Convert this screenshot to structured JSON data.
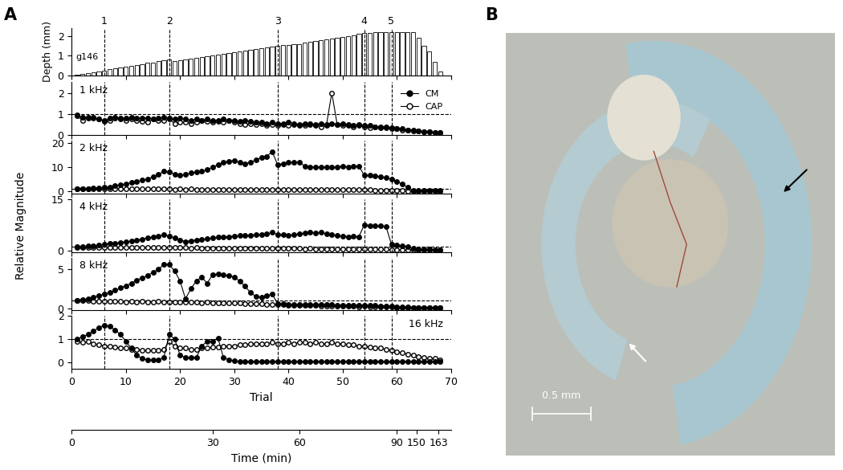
{
  "panel_labels": [
    "A",
    "B"
  ],
  "trial_axis": {
    "label": "Trial",
    "xlim": [
      0,
      70
    ],
    "xticks": [
      0,
      10,
      20,
      30,
      40,
      50,
      60,
      70
    ],
    "x": [
      1,
      2,
      3,
      4,
      5,
      6,
      7,
      8,
      9,
      10,
      11,
      12,
      13,
      14,
      15,
      16,
      17,
      18,
      19,
      20,
      21,
      22,
      23,
      24,
      25,
      26,
      27,
      28,
      29,
      30,
      31,
      32,
      33,
      34,
      35,
      36,
      37,
      38,
      39,
      40,
      41,
      42,
      43,
      44,
      45,
      46,
      47,
      48,
      49,
      50,
      51,
      52,
      53,
      54,
      55,
      56,
      57,
      58,
      59,
      60,
      61,
      62,
      63,
      64,
      65,
      66,
      67,
      68
    ]
  },
  "time_axis": {
    "label": "Time (min)",
    "xlim": [
      0,
      70
    ],
    "xticks": [
      {
        "value": 0,
        "label": "0"
      },
      {
        "value": 26,
        "label": "30"
      },
      {
        "value": 42,
        "label": "60"
      },
      {
        "value": 60,
        "label": "90"
      },
      {
        "value": 63.6,
        "label": "150"
      },
      {
        "value": 67.7,
        "label": "163"
      }
    ]
  },
  "events": {
    "x": [
      6,
      18,
      38,
      54,
      59
    ],
    "labels": [
      "1",
      "2",
      "3",
      "4",
      "5"
    ]
  },
  "y_label": "Relative Magnitude",
  "chart_data": [
    {
      "type": "bar",
      "y_label": "Depth (mm)",
      "annotation": "g146",
      "color": "#ffffff",
      "tick_labels": "y",
      "ylim": [
        0,
        2.4
      ],
      "yticks": [
        0,
        1,
        2
      ],
      "values": [
        0.02,
        0.07,
        0.11,
        0.16,
        0.2,
        0.25,
        0.3,
        0.34,
        0.39,
        0.43,
        0.48,
        0.52,
        0.57,
        0.62,
        0.66,
        0.71,
        0.75,
        0.8,
        0.72,
        0.76,
        0.8,
        0.84,
        0.88,
        0.92,
        0.96,
        1.0,
        1.04,
        1.08,
        1.13,
        1.17,
        1.21,
        1.25,
        1.29,
        1.33,
        1.37,
        1.41,
        1.45,
        1.5,
        1.55,
        1.56,
        1.57,
        1.6,
        1.65,
        1.7,
        1.74,
        1.78,
        1.82,
        1.86,
        1.9,
        1.95,
        2.0,
        2.05,
        2.1,
        2.15,
        2.17,
        2.18,
        2.2,
        2.2,
        2.2,
        2.2,
        2.2,
        2.2,
        2.2,
        1.9,
        1.5,
        1.2,
        0.7,
        0.2
      ]
    },
    {
      "type": "line",
      "title": "1 kHz",
      "legend": "upper right",
      "tick_labels": "y",
      "reference": 1,
      "ylim": [
        0,
        2.5
      ],
      "yticks": [
        0,
        1,
        2
      ],
      "series": [
        {
          "name": "CM",
          "color": "#000000",
          "marker": "filled_circle",
          "values": [
            0.95,
            0.85,
            0.8,
            0.85,
            0.75,
            0.7,
            0.8,
            0.85,
            0.8,
            0.8,
            0.85,
            0.8,
            0.8,
            0.8,
            0.75,
            0.8,
            0.85,
            0.8,
            0.75,
            0.8,
            0.75,
            0.7,
            0.75,
            0.7,
            0.75,
            0.7,
            0.7,
            0.75,
            0.7,
            0.7,
            0.65,
            0.7,
            0.65,
            0.6,
            0.6,
            0.55,
            0.6,
            0.55,
            0.55,
            0.6,
            0.55,
            0.5,
            0.55,
            0.55,
            0.5,
            0.55,
            0.5,
            0.55,
            0.5,
            0.55,
            0.5,
            0.45,
            0.5,
            0.45,
            0.45,
            0.4,
            0.4,
            0.4,
            0.35,
            0.3,
            0.3,
            0.25,
            0.25,
            0.2,
            0.15,
            0.15,
            0.1,
            0.1
          ]
        },
        {
          "name": "CAP",
          "color": "#000000",
          "marker": "open_circle",
          "values": [
            0.9,
            0.7,
            0.85,
            0.8,
            0.75,
            0.65,
            0.7,
            0.8,
            0.75,
            0.7,
            0.75,
            0.7,
            0.65,
            0.6,
            0.75,
            0.7,
            0.7,
            0.75,
            0.55,
            0.6,
            0.6,
            0.55,
            0.6,
            0.7,
            0.65,
            0.6,
            0.65,
            0.6,
            0.7,
            0.6,
            0.55,
            0.5,
            0.55,
            0.5,
            0.55,
            0.45,
            0.5,
            0.45,
            0.5,
            0.45,
            0.5,
            0.45,
            0.45,
            0.5,
            0.45,
            0.4,
            0.45,
            2.0,
            0.5,
            0.45,
            0.45,
            0.4,
            0.45,
            0.4,
            0.35,
            0.4,
            0.35,
            0.35,
            0.3,
            0.3,
            0.25,
            0.25,
            0.2,
            0.2,
            0.15,
            0.15,
            0.1,
            0.1
          ]
        }
      ]
    },
    {
      "type": "line",
      "title": "2 kHz",
      "tick_labels": "y",
      "reference": 1,
      "ylim": [
        -1,
        21
      ],
      "yticks": [
        0,
        10,
        20
      ],
      "series": [
        {
          "name": "CM",
          "color": "#000000",
          "marker": "filled_circle",
          "values": [
            1.0,
            1.0,
            1.0,
            1.2,
            1.3,
            1.5,
            1.8,
            2.2,
            2.6,
            3.0,
            3.5,
            4.0,
            4.5,
            5.0,
            6.0,
            7.0,
            8.2,
            8.0,
            7.0,
            6.5,
            7.0,
            7.5,
            8.0,
            8.2,
            9.0,
            10.0,
            11.0,
            12.0,
            12.5,
            12.8,
            12.0,
            11.5,
            12.0,
            13.0,
            14.0,
            14.5,
            16.5,
            11.0,
            11.5,
            12.0,
            12.0,
            12.0,
            10.5,
            10.0,
            10.0,
            10.0,
            10.0,
            10.0,
            10.0,
            10.5,
            10.0,
            10.5,
            10.5,
            6.5,
            6.5,
            6.3,
            6.0,
            5.5,
            5.0,
            4.0,
            3.0,
            1.5,
            0.3,
            0.2,
            0.2,
            0.2,
            0.2,
            0.2
          ]
        },
        {
          "name": "CAP",
          "color": "#000000",
          "marker": "open_circle",
          "values": [
            1.0,
            1.0,
            0.95,
            1.0,
            0.95,
            0.9,
            0.95,
            0.9,
            0.9,
            0.95,
            0.9,
            0.9,
            0.85,
            0.9,
            0.85,
            0.9,
            0.85,
            0.85,
            0.8,
            0.85,
            0.8,
            0.85,
            0.8,
            0.8,
            0.8,
            0.75,
            0.8,
            0.75,
            0.75,
            0.8,
            0.75,
            0.75,
            0.7,
            0.75,
            0.7,
            0.7,
            0.7,
            0.65,
            0.7,
            0.65,
            0.65,
            0.7,
            0.65,
            0.65,
            0.6,
            0.65,
            0.6,
            0.6,
            0.6,
            0.6,
            0.55,
            0.55,
            0.5,
            0.5,
            0.5,
            0.45,
            0.45,
            0.4,
            0.35,
            0.3,
            0.2,
            0.1,
            0.05,
            0.05,
            0.05,
            0.05,
            0.05,
            0.05
          ]
        }
      ]
    },
    {
      "type": "line",
      "title": "4 kHz",
      "tick_labels": "y",
      "reference": 1,
      "ylim": [
        -0.5,
        15
      ],
      "yticks": [
        0,
        15
      ],
      "series": [
        {
          "name": "CM",
          "color": "#000000",
          "marker": "filled_circle",
          "values": [
            1.0,
            1.1,
            1.2,
            1.3,
            1.5,
            1.7,
            1.9,
            2.1,
            2.3,
            2.5,
            2.7,
            3.0,
            3.3,
            3.6,
            3.9,
            4.2,
            4.5,
            4.2,
            3.6,
            3.0,
            2.6,
            2.8,
            3.0,
            3.2,
            3.4,
            3.6,
            3.8,
            3.9,
            4.0,
            4.2,
            4.3,
            4.4,
            4.3,
            4.5,
            4.7,
            4.8,
            5.2,
            4.6,
            4.5,
            4.4,
            4.6,
            4.8,
            5.0,
            5.2,
            5.0,
            5.2,
            4.8,
            4.5,
            4.3,
            4.2,
            4.0,
            4.1,
            4.0,
            7.5,
            7.3,
            7.2,
            7.2,
            7.0,
            1.8,
            1.5,
            1.3,
            1.0,
            0.6,
            0.4,
            0.3,
            0.3,
            0.2,
            0.2
          ]
        },
        {
          "name": "CAP",
          "color": "#000000",
          "marker": "open_circle",
          "values": [
            0.95,
            0.9,
            0.9,
            0.95,
            0.9,
            0.9,
            0.85,
            0.9,
            0.85,
            0.85,
            0.85,
            0.8,
            0.85,
            0.8,
            0.8,
            0.8,
            0.75,
            0.8,
            0.75,
            0.75,
            0.75,
            0.7,
            0.75,
            0.7,
            0.7,
            0.7,
            0.65,
            0.7,
            0.65,
            0.65,
            0.65,
            0.6,
            0.65,
            0.6,
            0.6,
            0.6,
            0.55,
            0.5,
            0.5,
            0.5,
            0.5,
            0.5,
            0.45,
            0.5,
            0.45,
            0.45,
            0.45,
            0.4,
            0.45,
            0.4,
            0.4,
            0.4,
            0.35,
            0.35,
            0.3,
            0.3,
            0.3,
            0.25,
            0.2,
            0.15,
            0.1,
            0.1,
            0.05,
            0.05,
            0.05,
            0.05,
            0.05,
            0.05
          ]
        }
      ]
    },
    {
      "type": "line",
      "title": "8 kHz",
      "tick_labels": "y",
      "reference": 1,
      "ylim": [
        -0.3,
        6.5
      ],
      "yticks": [
        0,
        5
      ],
      "series": [
        {
          "name": "CM",
          "color": "#000000",
          "marker": "filled_circle",
          "values": [
            1.0,
            1.1,
            1.2,
            1.4,
            1.6,
            1.8,
            2.0,
            2.3,
            2.6,
            2.9,
            3.2,
            3.6,
            3.9,
            4.2,
            4.6,
            5.0,
            5.6,
            5.6,
            4.8,
            3.5,
            1.2,
            2.5,
            3.5,
            4.0,
            3.2,
            4.3,
            4.4,
            4.3,
            4.2,
            4.0,
            3.5,
            2.8,
            2.0,
            1.5,
            1.4,
            1.6,
            1.8,
            0.6,
            0.55,
            0.5,
            0.5,
            0.5,
            0.5,
            0.5,
            0.45,
            0.45,
            0.45,
            0.45,
            0.4,
            0.4,
            0.4,
            0.4,
            0.4,
            0.4,
            0.35,
            0.35,
            0.3,
            0.3,
            0.25,
            0.2,
            0.15,
            0.15,
            0.1,
            0.1,
            0.05,
            0.05,
            0.05,
            0.05
          ]
        },
        {
          "name": "CAP",
          "color": "#000000",
          "marker": "open_circle",
          "values": [
            0.95,
            1.0,
            0.95,
            0.9,
            0.9,
            0.85,
            0.9,
            0.85,
            0.85,
            0.8,
            0.85,
            0.8,
            0.85,
            0.8,
            0.8,
            0.85,
            0.8,
            0.8,
            0.75,
            0.8,
            0.8,
            0.75,
            0.8,
            0.7,
            0.75,
            0.7,
            0.7,
            0.7,
            0.65,
            0.65,
            0.65,
            0.6,
            0.6,
            0.55,
            0.55,
            0.5,
            0.5,
            0.45,
            0.45,
            0.4,
            0.4,
            0.4,
            0.35,
            0.35,
            0.35,
            0.3,
            0.3,
            0.3,
            0.3,
            0.25,
            0.25,
            0.25,
            0.2,
            0.25,
            0.2,
            0.2,
            0.2,
            0.15,
            0.15,
            0.1,
            0.1,
            0.05,
            0.05,
            0.05,
            0.05,
            0.02,
            0.02,
            0.02
          ]
        }
      ]
    },
    {
      "type": "line",
      "title": "16 kHz",
      "tick_labels": true,
      "reference": 1,
      "ylim": [
        -0.3,
        2.0
      ],
      "yticks": [
        0,
        1,
        2
      ],
      "series": [
        {
          "name": "CM",
          "color": "#000000",
          "marker": "filled_circle",
          "values": [
            1.0,
            1.1,
            1.2,
            1.35,
            1.5,
            1.6,
            1.55,
            1.4,
            1.2,
            0.9,
            0.6,
            0.3,
            0.15,
            0.1,
            0.1,
            0.1,
            0.2,
            1.2,
            1.0,
            0.3,
            0.2,
            0.2,
            0.2,
            0.7,
            0.9,
            0.9,
            1.05,
            0.2,
            0.1,
            0.05,
            0.02,
            0.02,
            0.02,
            0.02,
            0.02,
            0.02,
            0.02,
            0.02,
            0.02,
            0.02,
            0.02,
            0.02,
            0.02,
            0.02,
            0.02,
            0.02,
            0.02,
            0.02,
            0.02,
            0.02,
            0.02,
            0.02,
            0.02,
            0.02,
            0.02,
            0.02,
            0.02,
            0.02,
            0.02,
            0.02,
            0.02,
            0.02,
            0.02,
            0.02,
            0.02,
            0.02,
            0.02,
            0.02
          ]
        },
        {
          "name": "CAP",
          "color": "#000000",
          "marker": "open_circle",
          "values": [
            0.9,
            0.85,
            0.9,
            0.8,
            0.75,
            0.7,
            0.7,
            0.65,
            0.6,
            0.6,
            0.55,
            0.55,
            0.5,
            0.5,
            0.5,
            0.5,
            0.55,
            0.9,
            0.7,
            0.6,
            0.6,
            0.55,
            0.55,
            0.6,
            0.6,
            0.65,
            0.65,
            0.7,
            0.7,
            0.7,
            0.75,
            0.75,
            0.8,
            0.8,
            0.8,
            0.8,
            0.85,
            0.8,
            0.8,
            0.85,
            0.8,
            0.85,
            0.85,
            0.8,
            0.85,
            0.8,
            0.8,
            0.85,
            0.8,
            0.8,
            0.75,
            0.75,
            0.7,
            0.7,
            0.65,
            0.6,
            0.6,
            0.55,
            0.5,
            0.45,
            0.4,
            0.35,
            0.3,
            0.25,
            0.2,
            0.15,
            0.15,
            0.1
          ]
        }
      ]
    }
  ],
  "image": {
    "scale_bar_label": "0.5 mm"
  }
}
